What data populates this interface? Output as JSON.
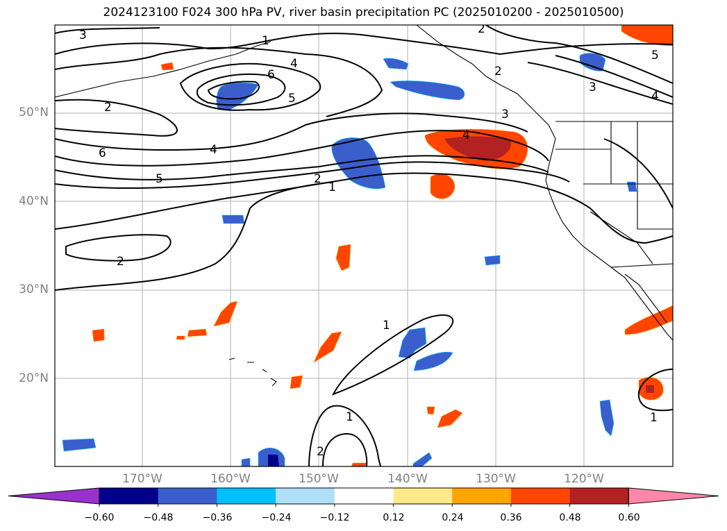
{
  "title": "2024123100 F024 300 hPa PV, river basin precipitation PC (2025010200 - 2025010500)",
  "lat_labels": [
    "50°N",
    "40°N",
    "30°N",
    "20°N"
  ],
  "lon_labels": [
    "170°W",
    "160°W",
    "150°W",
    "140°W",
    "130°W",
    "120°W"
  ],
  "contour_labels": [
    "3",
    "1",
    "2",
    "4",
    "6",
    "5",
    "2",
    "6",
    "4",
    "5",
    "2",
    "1",
    "2",
    "3",
    "4",
    "3",
    "4",
    "5",
    "2",
    "1",
    "1",
    "2",
    "1"
  ],
  "colorbar": {
    "colors": [
      "#9932cc",
      "#00008b",
      "#3a5fcd",
      "#00bfff",
      "#b0e0f8",
      "#ffffff",
      "#fce98a",
      "#ffa500",
      "#ff4500",
      "#b22222",
      "#ff88aa"
    ],
    "tick_labels": [
      "−0.60",
      "−0.48",
      "−0.36",
      "−0.24",
      "−0.12",
      "0.12",
      "0.24",
      "0.36",
      "0.48",
      "0.60"
    ]
  }
}
